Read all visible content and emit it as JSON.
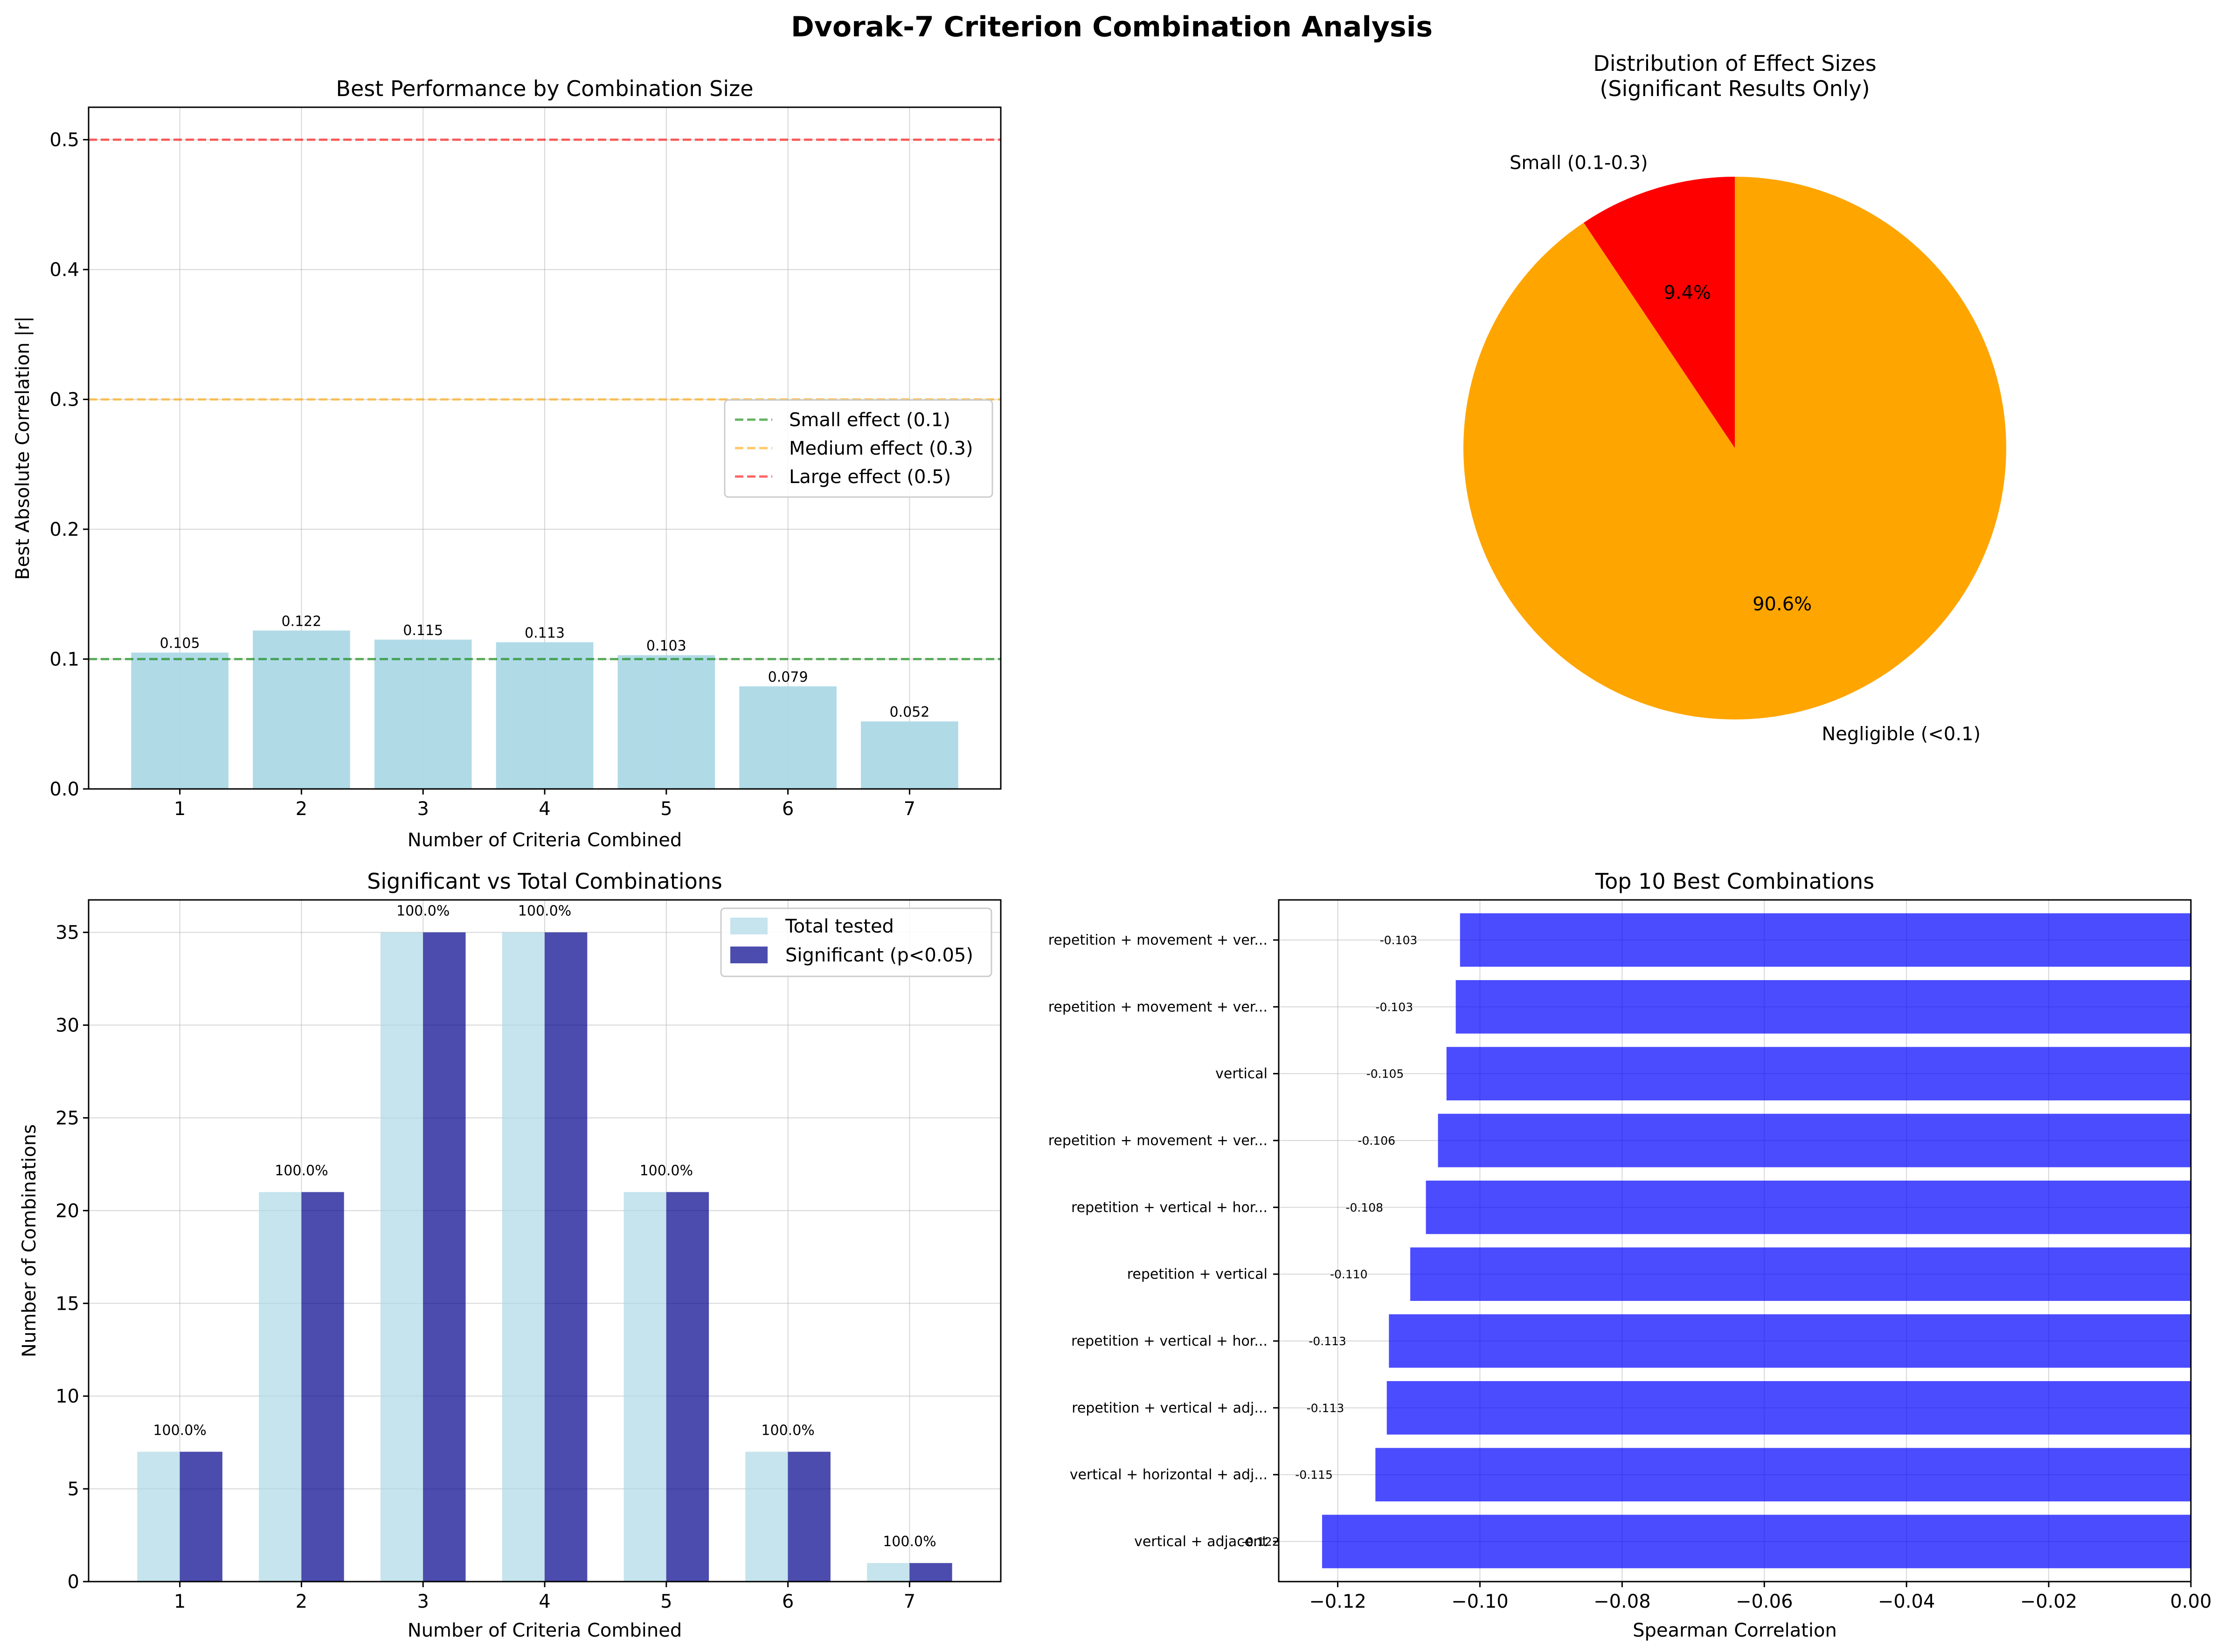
{
  "figure": {
    "title": "Dvorak-7 Criterion Combination Analysis"
  },
  "colors": {
    "light_blue": "#add8e6",
    "navy": "#00008b",
    "blue": "#0000ff",
    "red": "#ff0000",
    "orange": "#ffa500",
    "green": "#008000",
    "grid": "#b0b0b0"
  },
  "chart_data": [
    {
      "id": "best_performance",
      "type": "bar",
      "title": "Best Performance by Combination Size",
      "xlabel": "Number of Criteria Combined",
      "ylabel": "Best Absolute Correlation |r|",
      "categories": [
        "1",
        "2",
        "3",
        "4",
        "5",
        "6",
        "7"
      ],
      "values": [
        0.105,
        0.122,
        0.115,
        0.113,
        0.103,
        0.079,
        0.052
      ],
      "data_labels": [
        "0.105",
        "0.122",
        "0.115",
        "0.113",
        "0.103",
        "0.079",
        "0.052"
      ],
      "ylim": [
        0,
        0.525
      ],
      "yticks": [
        0.0,
        0.1,
        0.2,
        0.3,
        0.4,
        0.5
      ],
      "ytick_labels": [
        "0.0",
        "0.1",
        "0.2",
        "0.3",
        "0.4",
        "0.5"
      ],
      "reference_lines": [
        {
          "name": "Small effect (0.1)",
          "value": 0.1,
          "color": "#008000"
        },
        {
          "name": "Medium effect (0.3)",
          "value": 0.3,
          "color": "#ffa500"
        },
        {
          "name": "Large effect (0.5)",
          "value": 0.5,
          "color": "#ff0000"
        }
      ],
      "legend_position": "center-right",
      "grid": true
    },
    {
      "id": "effect_sizes",
      "type": "pie",
      "title_lines": [
        "Distribution of Effect Sizes",
        "(Significant Results Only)"
      ],
      "slices": [
        {
          "label": "Small (0.1-0.3)",
          "value": 9.4,
          "pct_label": "9.4%",
          "color": "#ff0000"
        },
        {
          "label": "Negligible (<0.1)",
          "value": 90.6,
          "pct_label": "90.6%",
          "color": "#ffa500"
        }
      ]
    },
    {
      "id": "significant_vs_total",
      "type": "bar",
      "title": "Significant vs Total Combinations",
      "xlabel": "Number of Criteria Combined",
      "ylabel": "Number of Combinations",
      "categories": [
        "1",
        "2",
        "3",
        "4",
        "5",
        "6",
        "7"
      ],
      "series": [
        {
          "name": "Total tested",
          "values": [
            7,
            21,
            35,
            35,
            21,
            7,
            1
          ],
          "color": "#add8e6"
        },
        {
          "name": "Significant (p<0.05)",
          "values": [
            7,
            21,
            35,
            35,
            21,
            7,
            1
          ],
          "color": "#00008b"
        }
      ],
      "data_labels": [
        "100.0%",
        "100.0%",
        "100.0%",
        "100.0%",
        "100.0%",
        "100.0%",
        "100.0%"
      ],
      "ylim": [
        0,
        36.75
      ],
      "yticks": [
        0,
        5,
        10,
        15,
        20,
        25,
        30,
        35
      ],
      "ytick_labels": [
        "0",
        "5",
        "10",
        "15",
        "20",
        "25",
        "30",
        "35"
      ],
      "legend_position": "top-right",
      "grid": true
    },
    {
      "id": "top10",
      "type": "bar",
      "orientation": "horizontal",
      "title": "Top 10 Best Combinations",
      "xlabel": "Spearman Correlation",
      "categories": [
        "repetition + movement + ver...",
        "repetition + movement + ver...",
        "vertical",
        "repetition + movement + ver...",
        "repetition + vertical + hor...",
        "repetition + vertical",
        "repetition + vertical + hor...",
        "repetition + vertical + adj...",
        "vertical + horizontal + adj...",
        "vertical + adjacent"
      ],
      "values": [
        -0.1028,
        -0.1034,
        -0.1047,
        -0.1059,
        -0.1076,
        -0.1098,
        -0.1128,
        -0.1131,
        -0.1147,
        -0.1222
      ],
      "data_labels": [
        "-0.103",
        "-0.103",
        "-0.105",
        "-0.106",
        "-0.108",
        "-0.110",
        "-0.113",
        "-0.113",
        "-0.115",
        "-0.122"
      ],
      "xlim": [
        -0.1283,
        0.0
      ],
      "xticks": [
        -0.12,
        -0.1,
        -0.08,
        -0.06,
        -0.04,
        -0.02,
        0.0
      ],
      "xtick_labels": [
        "−0.12",
        "−0.10",
        "−0.08",
        "−0.06",
        "−0.04",
        "−0.02",
        "0.00"
      ],
      "grid": true
    }
  ]
}
